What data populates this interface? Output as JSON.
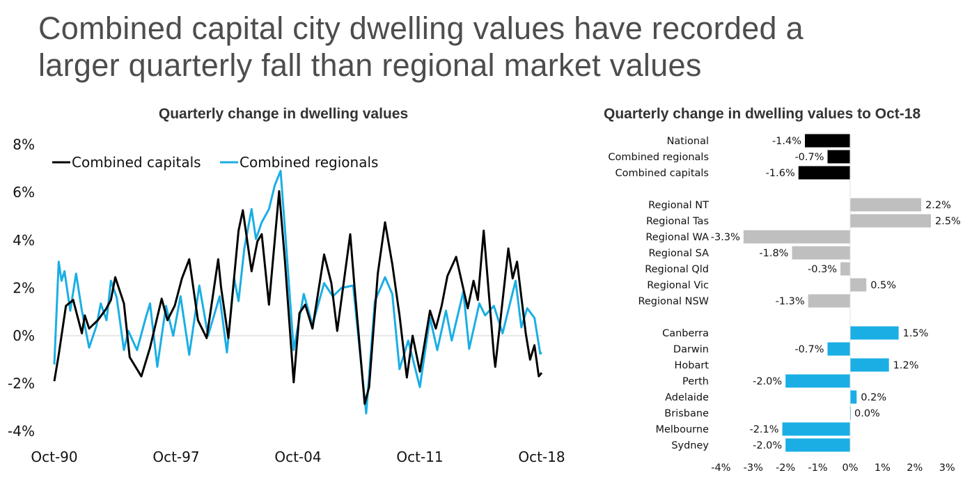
{
  "title": {
    "line1": "Combined capital city dwelling values have recorded a",
    "line2": "larger quarterly fall than regional market values"
  },
  "chart_data": [
    {
      "type": "line",
      "title": "Quarterly change in dwelling values",
      "xlabel": "",
      "ylabel": "",
      "x_ticks": [
        "Oct-90",
        "Oct-97",
        "Oct-04",
        "Oct-11",
        "Oct-18"
      ],
      "y_ticks": [
        "8%",
        "6%",
        "4%",
        "2%",
        "0%",
        "-2%",
        "-4%"
      ],
      "ylim": [
        -4,
        8
      ],
      "xlim": [
        "1990-10",
        "2018-10"
      ],
      "grid": false,
      "legend": "top-left",
      "series": [
        {
          "name": "Combined capitals",
          "color": "#000000",
          "points": [
            [
              "1990-10",
              -1.9
            ],
            [
              "1991-01",
              -0.8
            ],
            [
              "1991-06",
              1.25
            ],
            [
              "1991-11",
              1.5
            ],
            [
              "1992-05",
              0.1
            ],
            [
              "1992-07",
              0.85
            ],
            [
              "1992-10",
              0.3
            ],
            [
              "1993-04",
              0.65
            ],
            [
              "1993-10",
              1.15
            ],
            [
              "1994-01",
              1.5
            ],
            [
              "1994-04",
              2.45
            ],
            [
              "1994-10",
              1.35
            ],
            [
              "1995-02",
              -0.9
            ],
            [
              "1995-10",
              -1.7
            ],
            [
              "1996-04",
              -0.5
            ],
            [
              "1996-12",
              1.55
            ],
            [
              "1997-04",
              0.65
            ],
            [
              "1997-09",
              1.25
            ],
            [
              "1998-02",
              2.4
            ],
            [
              "1998-07",
              3.2
            ],
            [
              "1999-01",
              0.65
            ],
            [
              "1999-07",
              -0.1
            ],
            [
              "2000-03",
              3.2
            ],
            [
              "2000-05",
              2.0
            ],
            [
              "2000-10",
              -0.1
            ],
            [
              "2001-05",
              4.4
            ],
            [
              "2001-08",
              5.25
            ],
            [
              "2002-02",
              2.7
            ],
            [
              "2002-06",
              3.95
            ],
            [
              "2002-09",
              4.25
            ],
            [
              "2003-02",
              1.3
            ],
            [
              "2003-09",
              6.05
            ],
            [
              "2004-01",
              3.1
            ],
            [
              "2004-07",
              -1.95
            ],
            [
              "2004-11",
              0.95
            ],
            [
              "2005-03",
              1.3
            ],
            [
              "2005-08",
              0.3
            ],
            [
              "2006-04",
              3.4
            ],
            [
              "2006-09",
              2.2
            ],
            [
              "2007-01",
              0.2
            ],
            [
              "2007-10",
              4.25
            ],
            [
              "2008-01",
              2.0
            ],
            [
              "2008-08",
              -2.85
            ],
            [
              "2008-11",
              -2.15
            ],
            [
              "2009-05",
              2.6
            ],
            [
              "2009-10",
              4.75
            ],
            [
              "2010-03",
              3.0
            ],
            [
              "2010-08",
              0.85
            ],
            [
              "2011-01",
              -1.75
            ],
            [
              "2011-05",
              0.0
            ],
            [
              "2011-10",
              -1.5
            ],
            [
              "2012-05",
              1.05
            ],
            [
              "2012-09",
              0.3
            ],
            [
              "2013-01",
              1.25
            ],
            [
              "2013-05",
              2.5
            ],
            [
              "2013-11",
              3.3
            ],
            [
              "2014-07",
              1.15
            ],
            [
              "2014-11",
              2.3
            ],
            [
              "2015-02",
              1.5
            ],
            [
              "2015-06",
              4.4
            ],
            [
              "2016-01",
              -0.8
            ],
            [
              "2016-02",
              -1.3
            ],
            [
              "2016-11",
              3.65
            ],
            [
              "2017-02",
              2.4
            ],
            [
              "2017-05",
              3.1
            ],
            [
              "2017-11",
              0.1
            ],
            [
              "2018-02",
              -1.0
            ],
            [
              "2018-05",
              -0.4
            ],
            [
              "2018-08",
              -1.7
            ],
            [
              "2018-10",
              -1.55
            ]
          ]
        },
        {
          "name": "Combined regionals",
          "color": "#1aaee5",
          "points": [
            [
              "1990-10",
              -1.2
            ],
            [
              "1991-01",
              3.1
            ],
            [
              "1991-03",
              2.3
            ],
            [
              "1991-05",
              2.7
            ],
            [
              "1991-09",
              1.05
            ],
            [
              "1992-01",
              2.6
            ],
            [
              "1992-05",
              1.05
            ],
            [
              "1992-10",
              -0.5
            ],
            [
              "1993-03",
              0.4
            ],
            [
              "1993-06",
              1.35
            ],
            [
              "1993-10",
              0.65
            ],
            [
              "1994-01",
              2.3
            ],
            [
              "1994-05",
              1.6
            ],
            [
              "1994-10",
              -0.6
            ],
            [
              "1995-01",
              0.2
            ],
            [
              "1995-07",
              -0.6
            ],
            [
              "1996-01",
              0.75
            ],
            [
              "1996-04",
              1.35
            ],
            [
              "1996-09",
              -1.3
            ],
            [
              "1997-03",
              1.25
            ],
            [
              "1997-08",
              0.0
            ],
            [
              "1998-01",
              1.65
            ],
            [
              "1998-07",
              -0.8
            ],
            [
              "1999-02",
              2.1
            ],
            [
              "1999-08",
              0.0
            ],
            [
              "2000-04",
              1.65
            ],
            [
              "2000-09",
              -0.7
            ],
            [
              "2001-02",
              2.4
            ],
            [
              "2001-05",
              1.45
            ],
            [
              "2001-09",
              3.65
            ],
            [
              "2002-02",
              5.3
            ],
            [
              "2002-05",
              4.05
            ],
            [
              "2002-09",
              4.75
            ],
            [
              "2003-02",
              5.3
            ],
            [
              "2003-06",
              6.3
            ],
            [
              "2003-10",
              6.9
            ],
            [
              "2004-01",
              4.45
            ],
            [
              "2004-07",
              -0.6
            ],
            [
              "2005-02",
              1.75
            ],
            [
              "2005-08",
              0.45
            ],
            [
              "2006-04",
              2.2
            ],
            [
              "2006-10",
              1.65
            ],
            [
              "2007-04",
              2.0
            ],
            [
              "2007-12",
              2.1
            ],
            [
              "2008-09",
              -3.25
            ],
            [
              "2009-03",
              1.45
            ],
            [
              "2009-10",
              2.45
            ],
            [
              "2010-03",
              1.75
            ],
            [
              "2010-08",
              -1.4
            ],
            [
              "2011-02",
              -0.2
            ],
            [
              "2011-10",
              -2.15
            ],
            [
              "2012-05",
              0.75
            ],
            [
              "2012-10",
              -0.6
            ],
            [
              "2013-04",
              1.05
            ],
            [
              "2013-08",
              -0.2
            ],
            [
              "2014-04",
              1.85
            ],
            [
              "2014-08",
              -0.55
            ],
            [
              "2015-03",
              1.35
            ],
            [
              "2015-07",
              0.85
            ],
            [
              "2016-01",
              1.25
            ],
            [
              "2016-07",
              0.1
            ],
            [
              "2017-04",
              2.3
            ],
            [
              "2017-08",
              0.35
            ],
            [
              "2017-12",
              1.15
            ],
            [
              "2018-05",
              0.75
            ],
            [
              "2018-09",
              -0.75
            ],
            [
              "2018-10",
              -0.7
            ]
          ]
        }
      ]
    },
    {
      "type": "bar",
      "orientation": "horizontal",
      "title": "Quarterly change in dwelling values to Oct-18",
      "xlim": [
        -4,
        3
      ],
      "x_ticks": [
        "-4%",
        "-3%",
        "-2%",
        "-1%",
        "0%",
        "1%",
        "2%",
        "3%"
      ],
      "grid": false,
      "groups": [
        {
          "color": "#000000",
          "bars": [
            {
              "category": "National",
              "value": -1.4,
              "label": "-1.4%"
            },
            {
              "category": "Combined regionals",
              "value": -0.7,
              "label": "-0.7%"
            },
            {
              "category": "Combined capitals",
              "value": -1.6,
              "label": "-1.6%"
            }
          ]
        },
        {
          "color": "#bfbfbf",
          "bars": [
            {
              "category": "Regional NT",
              "value": 2.2,
              "label": "2.2%"
            },
            {
              "category": "Regional Tas",
              "value": 2.5,
              "label": "2.5%"
            },
            {
              "category": "Regional WA",
              "value": -3.3,
              "label": "-3.3%"
            },
            {
              "category": "Regional SA",
              "value": -1.8,
              "label": "-1.8%"
            },
            {
              "category": "Regional Qld",
              "value": -0.3,
              "label": "-0.3%"
            },
            {
              "category": "Regional Vic",
              "value": 0.5,
              "label": "0.5%"
            },
            {
              "category": "Regional NSW",
              "value": -1.3,
              "label": "-1.3%"
            }
          ]
        },
        {
          "color": "#1aaee5",
          "bars": [
            {
              "category": "Canberra",
              "value": 1.5,
              "label": "1.5%"
            },
            {
              "category": "Darwin",
              "value": -0.7,
              "label": "-0.7%"
            },
            {
              "category": "Hobart",
              "value": 1.2,
              "label": "1.2%"
            },
            {
              "category": "Perth",
              "value": -2.0,
              "label": "-2.0%"
            },
            {
              "category": "Adelaide",
              "value": 0.2,
              "label": "0.2%"
            },
            {
              "category": "Brisbane",
              "value": 0.0,
              "label": "0.0%"
            },
            {
              "category": "Melbourne",
              "value": -2.1,
              "label": "-2.1%"
            },
            {
              "category": "Sydney",
              "value": -2.0,
              "label": "-2.0%"
            }
          ]
        }
      ]
    }
  ]
}
